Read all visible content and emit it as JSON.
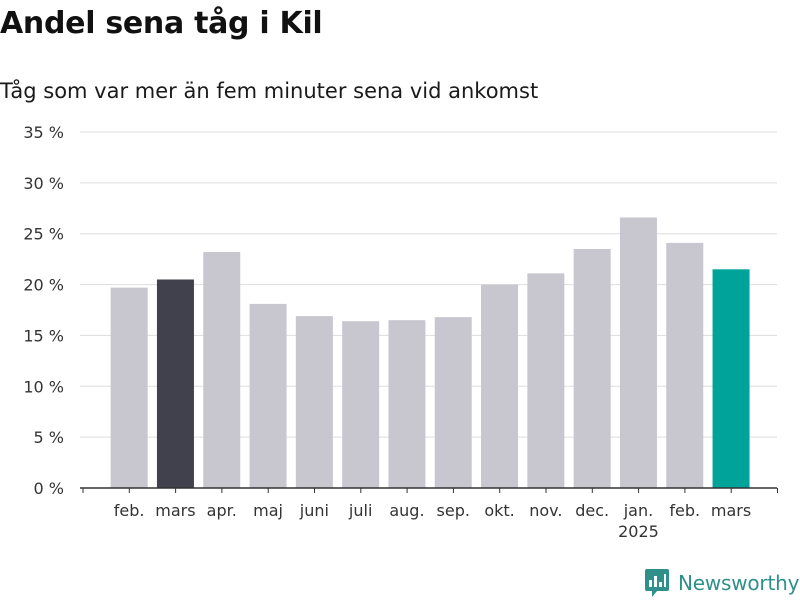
{
  "header": {
    "title": "Andel sena tåg i Kil",
    "subtitle": "Tåg som var mer än fem minuter sena vid ankomst"
  },
  "brand": {
    "name": "Newsworthy"
  },
  "colors": {
    "default_bar": "#c8c7d0",
    "previous_year_bar": "#41404d",
    "current_bar": "#00a39a",
    "grid": "#dddddd",
    "axis": "#333333",
    "brand": "#2f8f8a"
  },
  "chart_data": {
    "type": "bar",
    "title": "Andel sena tåg i Kil",
    "subtitle": "Tåg som var mer än fem minuter sena vid ankomst",
    "xlabel": "",
    "ylabel": "",
    "ylim": [
      0,
      35
    ],
    "yticks": [
      "0 %",
      "5 %",
      "10 %",
      "15 %",
      "20 %",
      "25 %",
      "30 %",
      "35 %"
    ],
    "ytick_values": [
      0,
      5,
      10,
      15,
      20,
      25,
      30,
      35
    ],
    "grid": true,
    "legend": "none",
    "categories": [
      "feb.",
      "mars",
      "apr.",
      "maj",
      "juni",
      "juli",
      "aug.",
      "sep.",
      "okt.",
      "nov.",
      "dec.",
      "jan.",
      "feb.",
      "mars"
    ],
    "category_sublabels": [
      "",
      "",
      "",
      "",
      "",
      "",
      "",
      "",
      "",
      "",
      "",
      "2025",
      "",
      ""
    ],
    "values": [
      19.7,
      20.5,
      23.2,
      18.1,
      16.9,
      16.4,
      16.5,
      16.8,
      20.0,
      21.1,
      23.5,
      26.6,
      24.1,
      21.5
    ],
    "bar_colors": [
      "default",
      "previous_year",
      "default",
      "default",
      "default",
      "default",
      "default",
      "default",
      "default",
      "default",
      "default",
      "default",
      "default",
      "current"
    ]
  }
}
